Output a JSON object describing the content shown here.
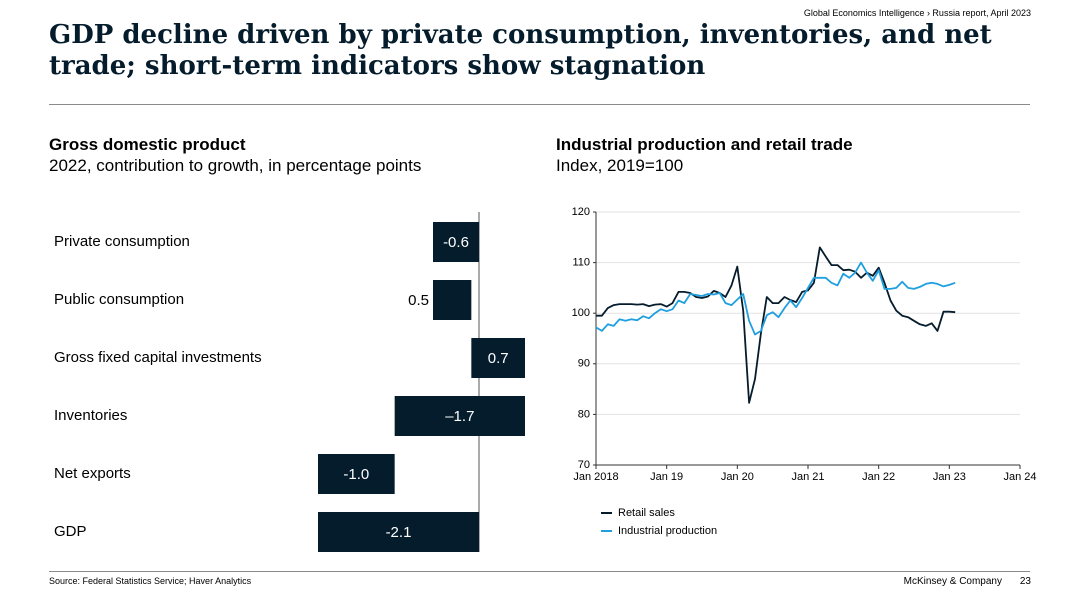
{
  "header": {
    "breadcrumb": "Global Economics Intelligence › Russia report, April 2023",
    "title": "GDP decline driven by private consumption, inventories, and net trade; short-term indicators show stagnation"
  },
  "colors": {
    "navy": "#051c2c",
    "cyan": "#1f9fe0"
  },
  "chart_data": [
    {
      "type": "bar",
      "title": "Gross domestic product",
      "subtitle": "2022, contribution to growth, in percentage points",
      "categories": [
        "Private consumption",
        "Public consumption",
        "Gross fixed capital investments",
        "Inventories",
        "Net exports",
        "GDP"
      ],
      "values": [
        -0.6,
        0.5,
        0.7,
        -1.7,
        -1.0,
        -2.1
      ],
      "value_labels": [
        "-0.6",
        "0.5",
        "0.7",
        "–1.7",
        "-1.0",
        "-2.1"
      ],
      "waterfall": true,
      "scale": [
        -2.1,
        0.7
      ]
    },
    {
      "type": "line",
      "title": "Industrial production and retail trade",
      "subtitle": "Index, 2019=100",
      "ylim": [
        70,
        120
      ],
      "yticks": [
        70,
        80,
        90,
        100,
        110,
        120
      ],
      "xlim": [
        2018.0,
        2024.0
      ],
      "xticks": [
        {
          "x": 2018.0,
          "label": "Jan 2018"
        },
        {
          "x": 2019.0,
          "label": "Jan 19"
        },
        {
          "x": 2020.0,
          "label": "Jan 20"
        },
        {
          "x": 2021.0,
          "label": "Jan 21"
        },
        {
          "x": 2022.0,
          "label": "Jan 22"
        },
        {
          "x": 2023.0,
          "label": "Jan 23"
        },
        {
          "x": 2024.0,
          "label": "Jan 24"
        }
      ],
      "legend": "bottom-left",
      "series": [
        {
          "name": "Retail sales",
          "color": "#051c2c",
          "x": [
            2018.0,
            2018.083,
            2018.167,
            2018.25,
            2018.333,
            2018.417,
            2018.5,
            2018.583,
            2018.667,
            2018.75,
            2018.833,
            2018.917,
            2019.0,
            2019.083,
            2019.167,
            2019.25,
            2019.333,
            2019.417,
            2019.5,
            2019.583,
            2019.667,
            2019.75,
            2019.833,
            2019.917,
            2020.0,
            2020.083,
            2020.167,
            2020.25,
            2020.333,
            2020.417,
            2020.5,
            2020.583,
            2020.667,
            2020.75,
            2020.833,
            2020.917,
            2021.0,
            2021.083,
            2021.167,
            2021.25,
            2021.333,
            2021.417,
            2021.5,
            2021.583,
            2021.667,
            2021.75,
            2021.833,
            2021.917,
            2022.0,
            2022.083,
            2022.167,
            2022.25,
            2022.333,
            2022.417,
            2022.5,
            2022.583,
            2022.667,
            2022.75,
            2022.833,
            2022.917,
            2023.0,
            2023.083
          ],
          "y": [
            99.5,
            99.5,
            101.0,
            101.6,
            101.8,
            101.8,
            101.8,
            101.7,
            101.8,
            101.4,
            101.7,
            101.8,
            101.3,
            102.0,
            104.2,
            104.2,
            104.0,
            103.2,
            103.0,
            103.3,
            104.4,
            104.0,
            103.2,
            105.5,
            109.2,
            100.5,
            82.3,
            87.0,
            96.0,
            103.2,
            102.0,
            102.0,
            103.2,
            102.6,
            102.2,
            104.2,
            104.5,
            106.0,
            113.0,
            111.2,
            109.5,
            109.5,
            108.5,
            108.6,
            108.2,
            107.0,
            108.0,
            107.4,
            109.0,
            106.0,
            102.5,
            100.5,
            99.5,
            99.2,
            98.5,
            97.8,
            97.5,
            98.0,
            96.5,
            100.3,
            100.3,
            100.2
          ]
        },
        {
          "name": "Industrial production",
          "color": "#1f9fe0",
          "x": [
            2018.0,
            2018.083,
            2018.167,
            2018.25,
            2018.333,
            2018.417,
            2018.5,
            2018.583,
            2018.667,
            2018.75,
            2018.833,
            2018.917,
            2019.0,
            2019.083,
            2019.167,
            2019.25,
            2019.333,
            2019.417,
            2019.5,
            2019.583,
            2019.667,
            2019.75,
            2019.833,
            2019.917,
            2020.0,
            2020.083,
            2020.167,
            2020.25,
            2020.333,
            2020.417,
            2020.5,
            2020.583,
            2020.667,
            2020.75,
            2020.833,
            2020.917,
            2021.0,
            2021.083,
            2021.167,
            2021.25,
            2021.333,
            2021.417,
            2021.5,
            2021.583,
            2021.667,
            2021.75,
            2021.833,
            2021.917,
            2022.0,
            2022.083,
            2022.167,
            2022.25,
            2022.333,
            2022.417,
            2022.5,
            2022.583,
            2022.667,
            2022.75,
            2022.833,
            2022.917,
            2023.0,
            2023.083
          ],
          "y": [
            97.2,
            96.5,
            97.8,
            97.5,
            98.8,
            98.5,
            98.8,
            98.6,
            99.4,
            99.0,
            100.0,
            100.8,
            100.4,
            100.8,
            102.5,
            102.0,
            103.8,
            103.6,
            103.4,
            103.8,
            103.7,
            104.0,
            102.0,
            101.6,
            102.7,
            103.8,
            98.5,
            95.8,
            96.5,
            99.6,
            100.2,
            99.2,
            101.0,
            102.5,
            101.2,
            103.0,
            105.0,
            107.0,
            107.0,
            107.0,
            106.0,
            105.5,
            107.8,
            107.0,
            108.0,
            110.0,
            108.0,
            106.4,
            108.5,
            104.8,
            104.8,
            105.0,
            106.2,
            105.0,
            104.8,
            105.2,
            105.8,
            106.0,
            105.8,
            105.3,
            105.6,
            106.0
          ]
        }
      ]
    }
  ],
  "footer": {
    "source": "Source: Federal Statistics Service; Haver Analytics",
    "brand": "McKinsey & Company",
    "page": "23"
  }
}
